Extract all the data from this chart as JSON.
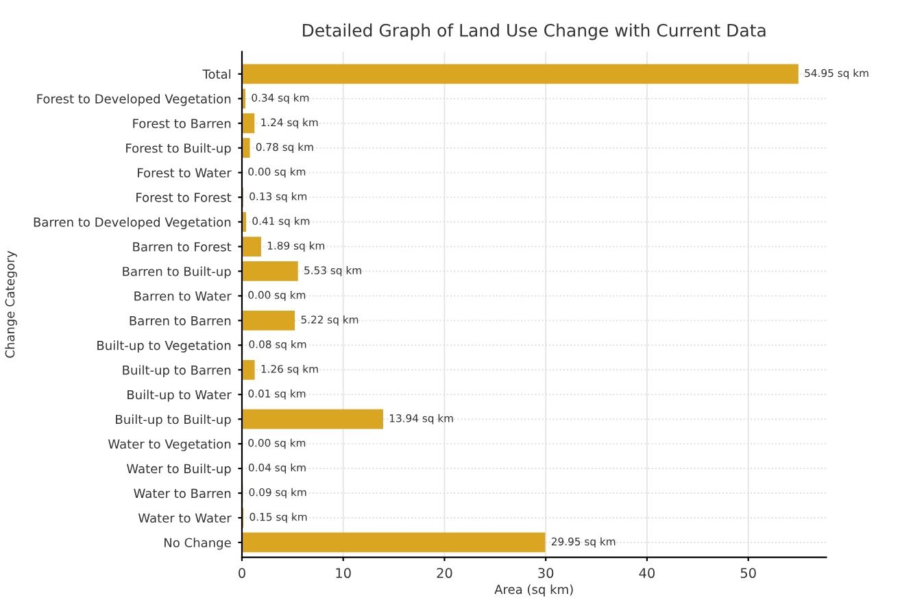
{
  "chart_data": {
    "type": "bar",
    "orientation": "horizontal",
    "title": "Detailed Graph of Land Use Change with Current Data",
    "xlabel": "Area (sq km)",
    "ylabel": "Change Category",
    "categories": [
      "Total",
      "Forest to Developed Vegetation",
      "Forest to Barren",
      "Forest to Built-up",
      "Forest to Water",
      "Forest to Forest",
      "Barren to Developed Vegetation",
      "Barren to Forest",
      "Barren to Built-up",
      "Barren to Water",
      "Barren to Barren",
      "Built-up to Vegetation",
      "Built-up to Barren",
      "Built-up to Water",
      "Built-up to Built-up",
      "Water to Vegetation",
      "Water to Built-up",
      "Water to Barren",
      "Water to Water",
      "No Change"
    ],
    "values": [
      54.95,
      0.34,
      1.24,
      0.78,
      0.0,
      0.13,
      0.41,
      1.89,
      5.53,
      0.0,
      5.22,
      0.08,
      1.26,
      0.01,
      13.94,
      0.0,
      0.04,
      0.09,
      0.15,
      29.95
    ],
    "value_labels": [
      "54.95 sq km",
      "0.34 sq km",
      "1.24 sq km",
      "0.78 sq km",
      "0.00 sq km",
      "0.13 sq km",
      "0.41 sq km",
      "1.89 sq km",
      "5.53 sq km",
      "0.00 sq km",
      "5.22 sq km",
      "0.08 sq km",
      "1.26 sq km",
      "0.01 sq km",
      "13.94 sq km",
      "0.00 sq km",
      "0.04 sq km",
      "0.09 sq km",
      "0.15 sq km",
      "29.95 sq km"
    ],
    "color": "#daa520",
    "xlim": [
      0,
      57.7
    ],
    "xticks": [
      0,
      10,
      20,
      30,
      40,
      50
    ],
    "grid": true
  }
}
